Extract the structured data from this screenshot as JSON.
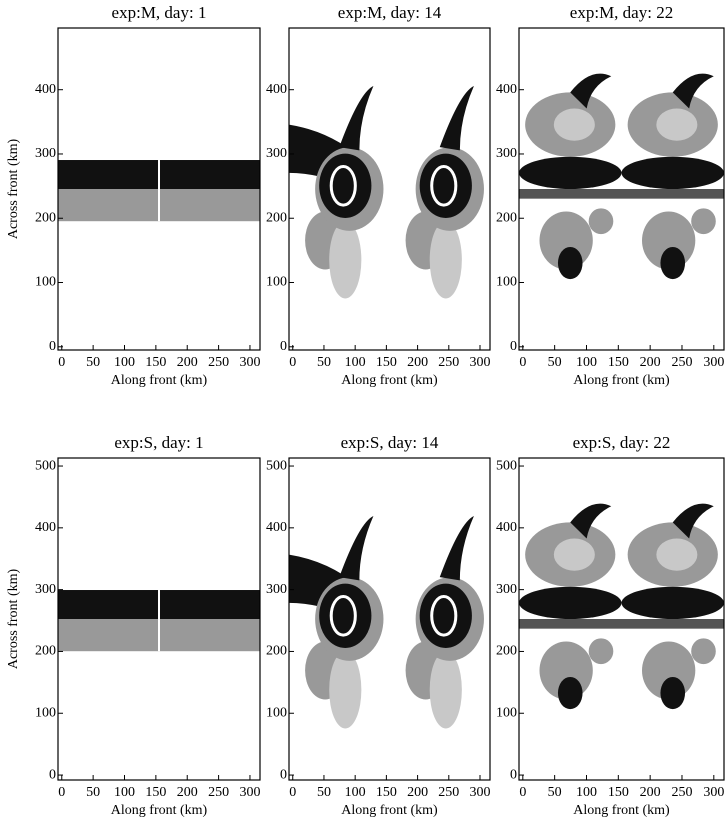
{
  "chart_data": [
    {
      "type": "tracer",
      "title": "exp:M, day: 1",
      "x_label": "Along front (km)",
      "y_label": "Across front (km)",
      "xlim": [
        -6,
        316
      ],
      "ylim": [
        -5,
        496
      ],
      "xticks": [
        0,
        50,
        100,
        150,
        200,
        250,
        300
      ],
      "yticks": [
        0,
        100,
        200,
        300,
        400
      ]
    },
    {
      "type": "tracer",
      "title": "exp:M, day: 14",
      "x_label": "Along front (km)",
      "xlim": [
        -6,
        316
      ],
      "ylim": [
        -5,
        496
      ],
      "xticks": [
        0,
        50,
        100,
        150,
        200,
        250,
        300
      ],
      "yticks": [
        0,
        100,
        200,
        300,
        400
      ]
    },
    {
      "type": "tracer",
      "title": "exp:M, day: 22",
      "x_label": "Along front (km)",
      "xlim": [
        -6,
        316
      ],
      "ylim": [
        -5,
        496
      ],
      "xticks": [
        0,
        50,
        100,
        150,
        200,
        250,
        300
      ],
      "yticks": [
        0,
        100,
        200,
        300,
        400
      ]
    },
    {
      "type": "tracer",
      "title": "exp:S, day: 1",
      "x_label": "Along front (km)",
      "y_label": "Across front (km)",
      "xlim": [
        -6,
        316
      ],
      "ylim": [
        -8,
        513
      ],
      "xticks": [
        0,
        50,
        100,
        150,
        200,
        250,
        300
      ],
      "yticks": [
        0,
        100,
        200,
        300,
        400,
        500
      ]
    },
    {
      "type": "tracer",
      "title": "exp:S, day: 14",
      "x_label": "Along front (km)",
      "xlim": [
        -6,
        316
      ],
      "ylim": [
        -8,
        513
      ],
      "xticks": [
        0,
        50,
        100,
        150,
        200,
        250,
        300
      ],
      "yticks": [
        0,
        100,
        200,
        300,
        400,
        500
      ]
    },
    {
      "type": "tracer",
      "title": "exp:S, day: 22",
      "x_label": "Along front (km)",
      "xlim": [
        -6,
        316
      ],
      "ylim": [
        -8,
        513
      ],
      "xticks": [
        0,
        50,
        100,
        150,
        200,
        250,
        300
      ],
      "yticks": [
        0,
        100,
        200,
        300,
        400,
        500
      ]
    }
  ]
}
